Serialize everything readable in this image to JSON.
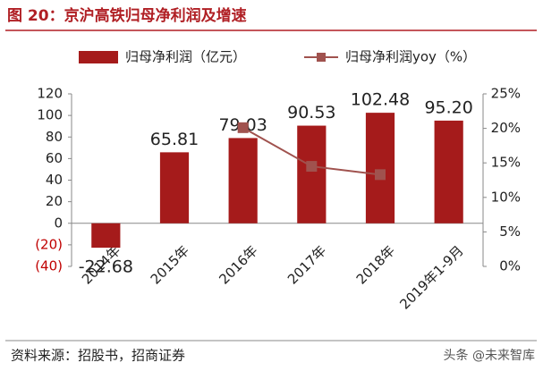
{
  "chart_data": {
    "type": "bar_line",
    "title": "图 20：京沪高铁归母净利润及增速",
    "source": "资料来源：招股书，招商证券",
    "watermark": "头条 @未来智库",
    "categories": [
      "2014年",
      "2015年",
      "2016年",
      "2017年",
      "2018年",
      "2019年1-9月"
    ],
    "series": [
      {
        "name": "归母净利润（亿元）",
        "color": "#a51b1b",
        "type": "bar",
        "values": [
          -22.68,
          65.81,
          79.03,
          90.53,
          102.48,
          95.2
        ],
        "value_labels": [
          "-22.68",
          "65.81",
          "79.03",
          "90.53",
          "102.48",
          "95.20"
        ]
      },
      {
        "name": "归母净利润yoy（%）",
        "color": "#a0524e",
        "type": "line",
        "axis": "y2",
        "values": [
          null,
          null,
          20.1,
          14.5,
          13.3,
          null
        ]
      }
    ],
    "ylim": [
      -40,
      120
    ],
    "yticks": [
      {
        "value": -40,
        "label": "(40)"
      },
      {
        "value": -20,
        "label": "(20)"
      },
      0,
      20,
      40,
      60,
      80,
      100,
      120
    ],
    "negative_tick_color": "#c00000",
    "y2lim": [
      0,
      25
    ],
    "y2ticks": [
      {
        "value": 0,
        "label": "0%"
      },
      {
        "value": 5,
        "label": "5%"
      },
      {
        "value": 10,
        "label": "10%"
      },
      {
        "value": 15,
        "label": "15%"
      },
      {
        "value": 20,
        "label": "20%"
      },
      {
        "value": 25,
        "label": "25%"
      }
    ],
    "grid": false
  }
}
